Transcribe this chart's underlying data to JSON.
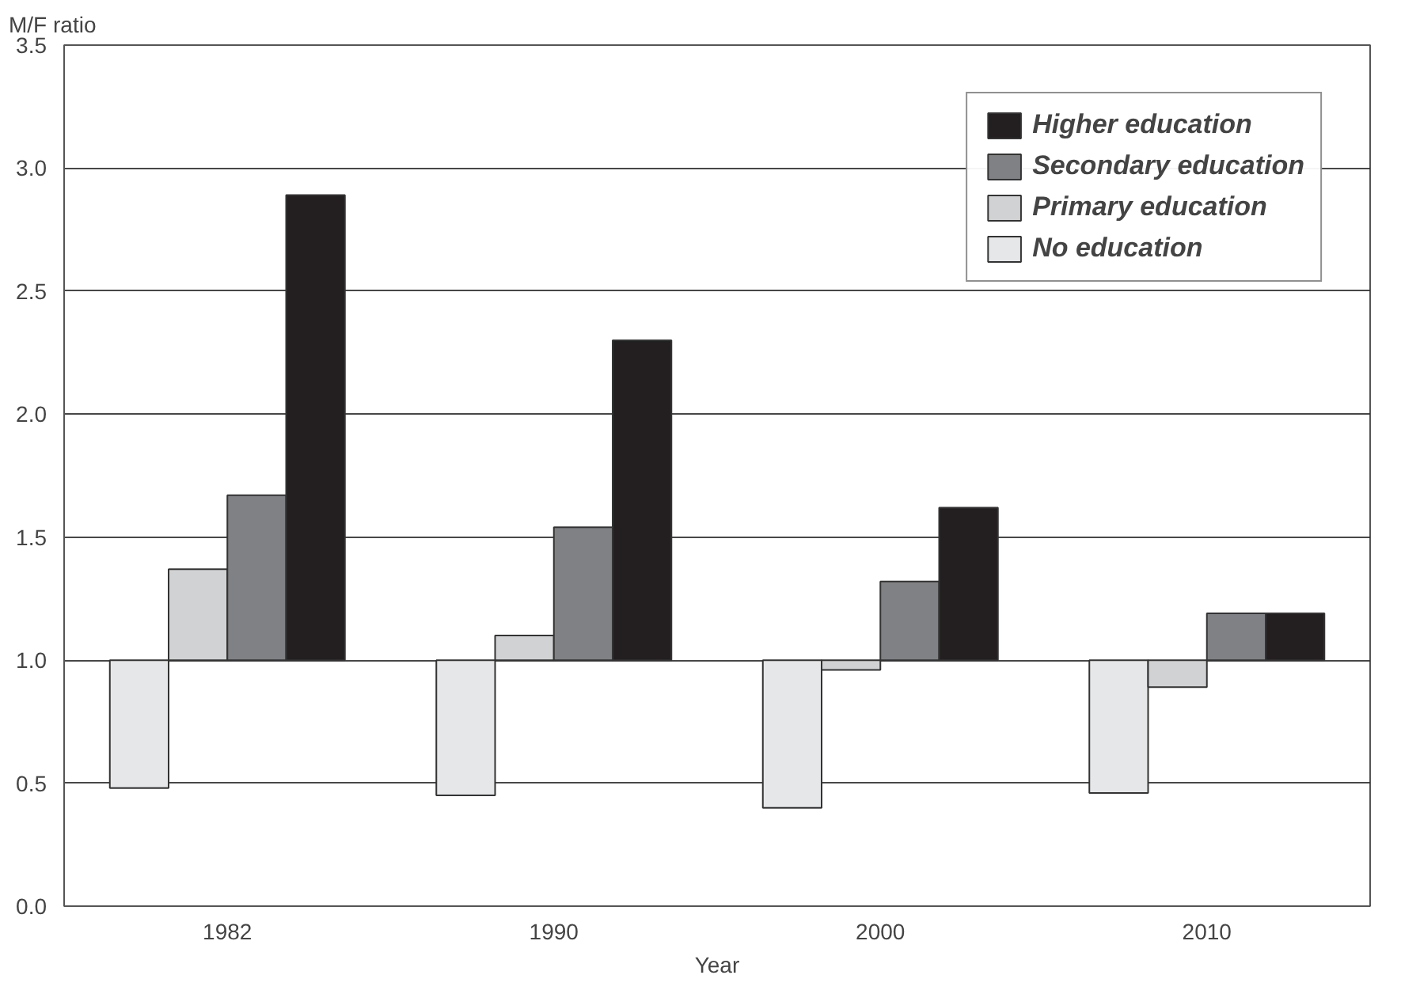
{
  "chart_data": {
    "type": "bar",
    "xlabel": "Year",
    "ylabel": "M/F ratio",
    "categories": [
      "1982",
      "1990",
      "2000",
      "2010"
    ],
    "series": [
      {
        "name": "No education",
        "color": "#e6e7e8",
        "base": [
          1.0,
          1.0,
          1.0,
          1.0
        ],
        "values": [
          -0.52,
          -0.55,
          -0.6,
          -0.54
        ]
      },
      {
        "name": "Primary education",
        "color": "#d1d2d4",
        "base": [
          1.0,
          1.0,
          1.0,
          1.0
        ],
        "values": [
          0.37,
          0.1,
          -0.04,
          -0.11
        ]
      },
      {
        "name": "Secondary education",
        "color": "#808184",
        "base": [
          1.0,
          1.0,
          1.0,
          1.0
        ],
        "values": [
          0.67,
          0.54,
          0.32,
          0.19
        ]
      },
      {
        "name": "Higher education",
        "color": "#231f20",
        "base": [
          1.0,
          1.0,
          1.0,
          1.0
        ],
        "values": [
          1.89,
          1.3,
          0.62,
          0.19
        ]
      }
    ],
    "ylim": [
      0,
      3.5
    ],
    "yticks": [
      {
        "value": 0,
        "label": "0.0"
      },
      0.5,
      {
        "value": 1,
        "label": "1.0"
      },
      1.5,
      {
        "value": 2,
        "label": "2.0"
      },
      2.5,
      {
        "value": 3,
        "label": "3.0"
      },
      3.5
    ],
    "grid": "y",
    "legend": "top right"
  }
}
